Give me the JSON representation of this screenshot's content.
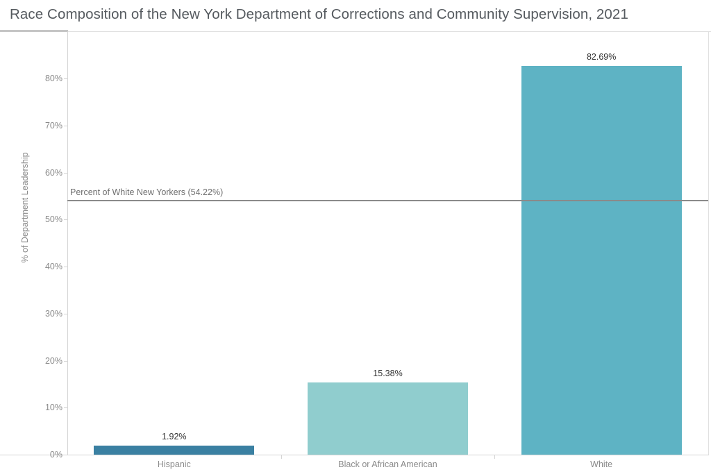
{
  "title": "Race Composition of the New York Department of Corrections and Community Supervision, 2021",
  "chart_data": {
    "type": "bar",
    "title": "Race Composition of the New York Department of Corrections and Community Supervision, 2021",
    "categories": [
      "Hispanic",
      "Black or African American",
      "White"
    ],
    "values": [
      1.92,
      15.38,
      82.69
    ],
    "value_labels": [
      "1.92%",
      "15.38%",
      "82.69%"
    ],
    "bar_colors": [
      "#3a80a2",
      "#90cdce",
      "#5eb3c4"
    ],
    "xlabel": "",
    "ylabel": "% of Department Leadership",
    "yticks": [
      0,
      10,
      20,
      30,
      40,
      50,
      60,
      70,
      80
    ],
    "ytick_labels": [
      "0%",
      "10%",
      "20%",
      "30%",
      "40%",
      "50%",
      "60%",
      "70%",
      "80%"
    ],
    "ylim": [
      0,
      90.1
    ],
    "grid": false,
    "legend": false,
    "reference_line": {
      "value": 54.22,
      "label": "Percent of White New Yorkers (54.22%)",
      "color": "#8a8a8a"
    }
  }
}
